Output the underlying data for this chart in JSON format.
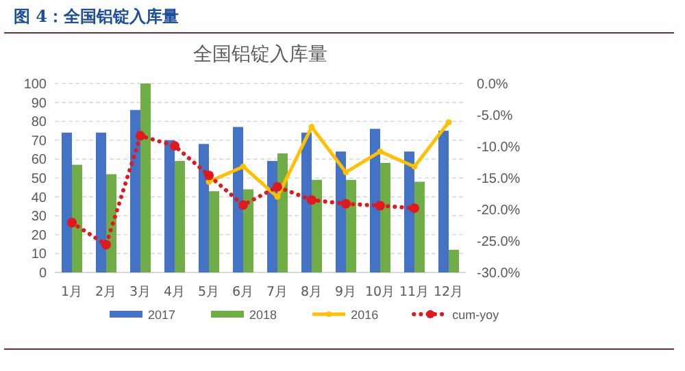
{
  "chart_data": {
    "type": "bar",
    "title": "图 4：全国铝锭入库量",
    "subtitle": "全国铝锭入库量",
    "categories": [
      "1月",
      "2月",
      "3月",
      "4月",
      "5月",
      "6月",
      "7月",
      "8月",
      "9月",
      "10月",
      "11月",
      "12月"
    ],
    "series": [
      {
        "name": "2017",
        "color": "#4472c4",
        "values": [
          74,
          74,
          86,
          70,
          68,
          77,
          59,
          74,
          64,
          76,
          64,
          75
        ]
      },
      {
        "name": "2018",
        "color": "#70ad47",
        "values": [
          57,
          52,
          100,
          59,
          43,
          44,
          63,
          49,
          49,
          58,
          48,
          12
        ]
      },
      {
        "name": "2016",
        "type": "line",
        "color": "#ffc000",
        "marker": "circle",
        "line_style": "solid",
        "values": [
          null,
          null,
          null,
          null,
          48,
          56,
          40,
          77,
          53,
          64,
          56,
          79.5
        ]
      },
      {
        "name": "cum-yoy",
        "type": "line",
        "axis": "y2",
        "color": "#e0191e",
        "marker": "circle",
        "line_style": "dotted",
        "values": [
          -22.1,
          -25.6,
          -8.3,
          -9.9,
          -14.6,
          -19.3,
          -16.4,
          -18.5,
          -19.1,
          -19.4,
          -19.8,
          null
        ]
      }
    ],
    "ylim": [
      0,
      100
    ],
    "yticks": [
      0,
      10,
      20,
      30,
      40,
      50,
      60,
      70,
      80,
      90,
      100
    ],
    "y2lim": [
      -30,
      0
    ],
    "y2ticks": [
      {
        "value": 0,
        "label": "0.0%"
      },
      {
        "value": -5,
        "label": "-5.0%"
      },
      {
        "value": -10,
        "label": "-10.0%"
      },
      {
        "value": -15,
        "label": "-15.0%"
      },
      {
        "value": -20,
        "label": "-20.0%"
      },
      {
        "value": -25,
        "label": "-25.0%"
      },
      {
        "value": -30,
        "label": "-30.0%"
      }
    ],
    "grid": "y",
    "legend": "bottom"
  }
}
